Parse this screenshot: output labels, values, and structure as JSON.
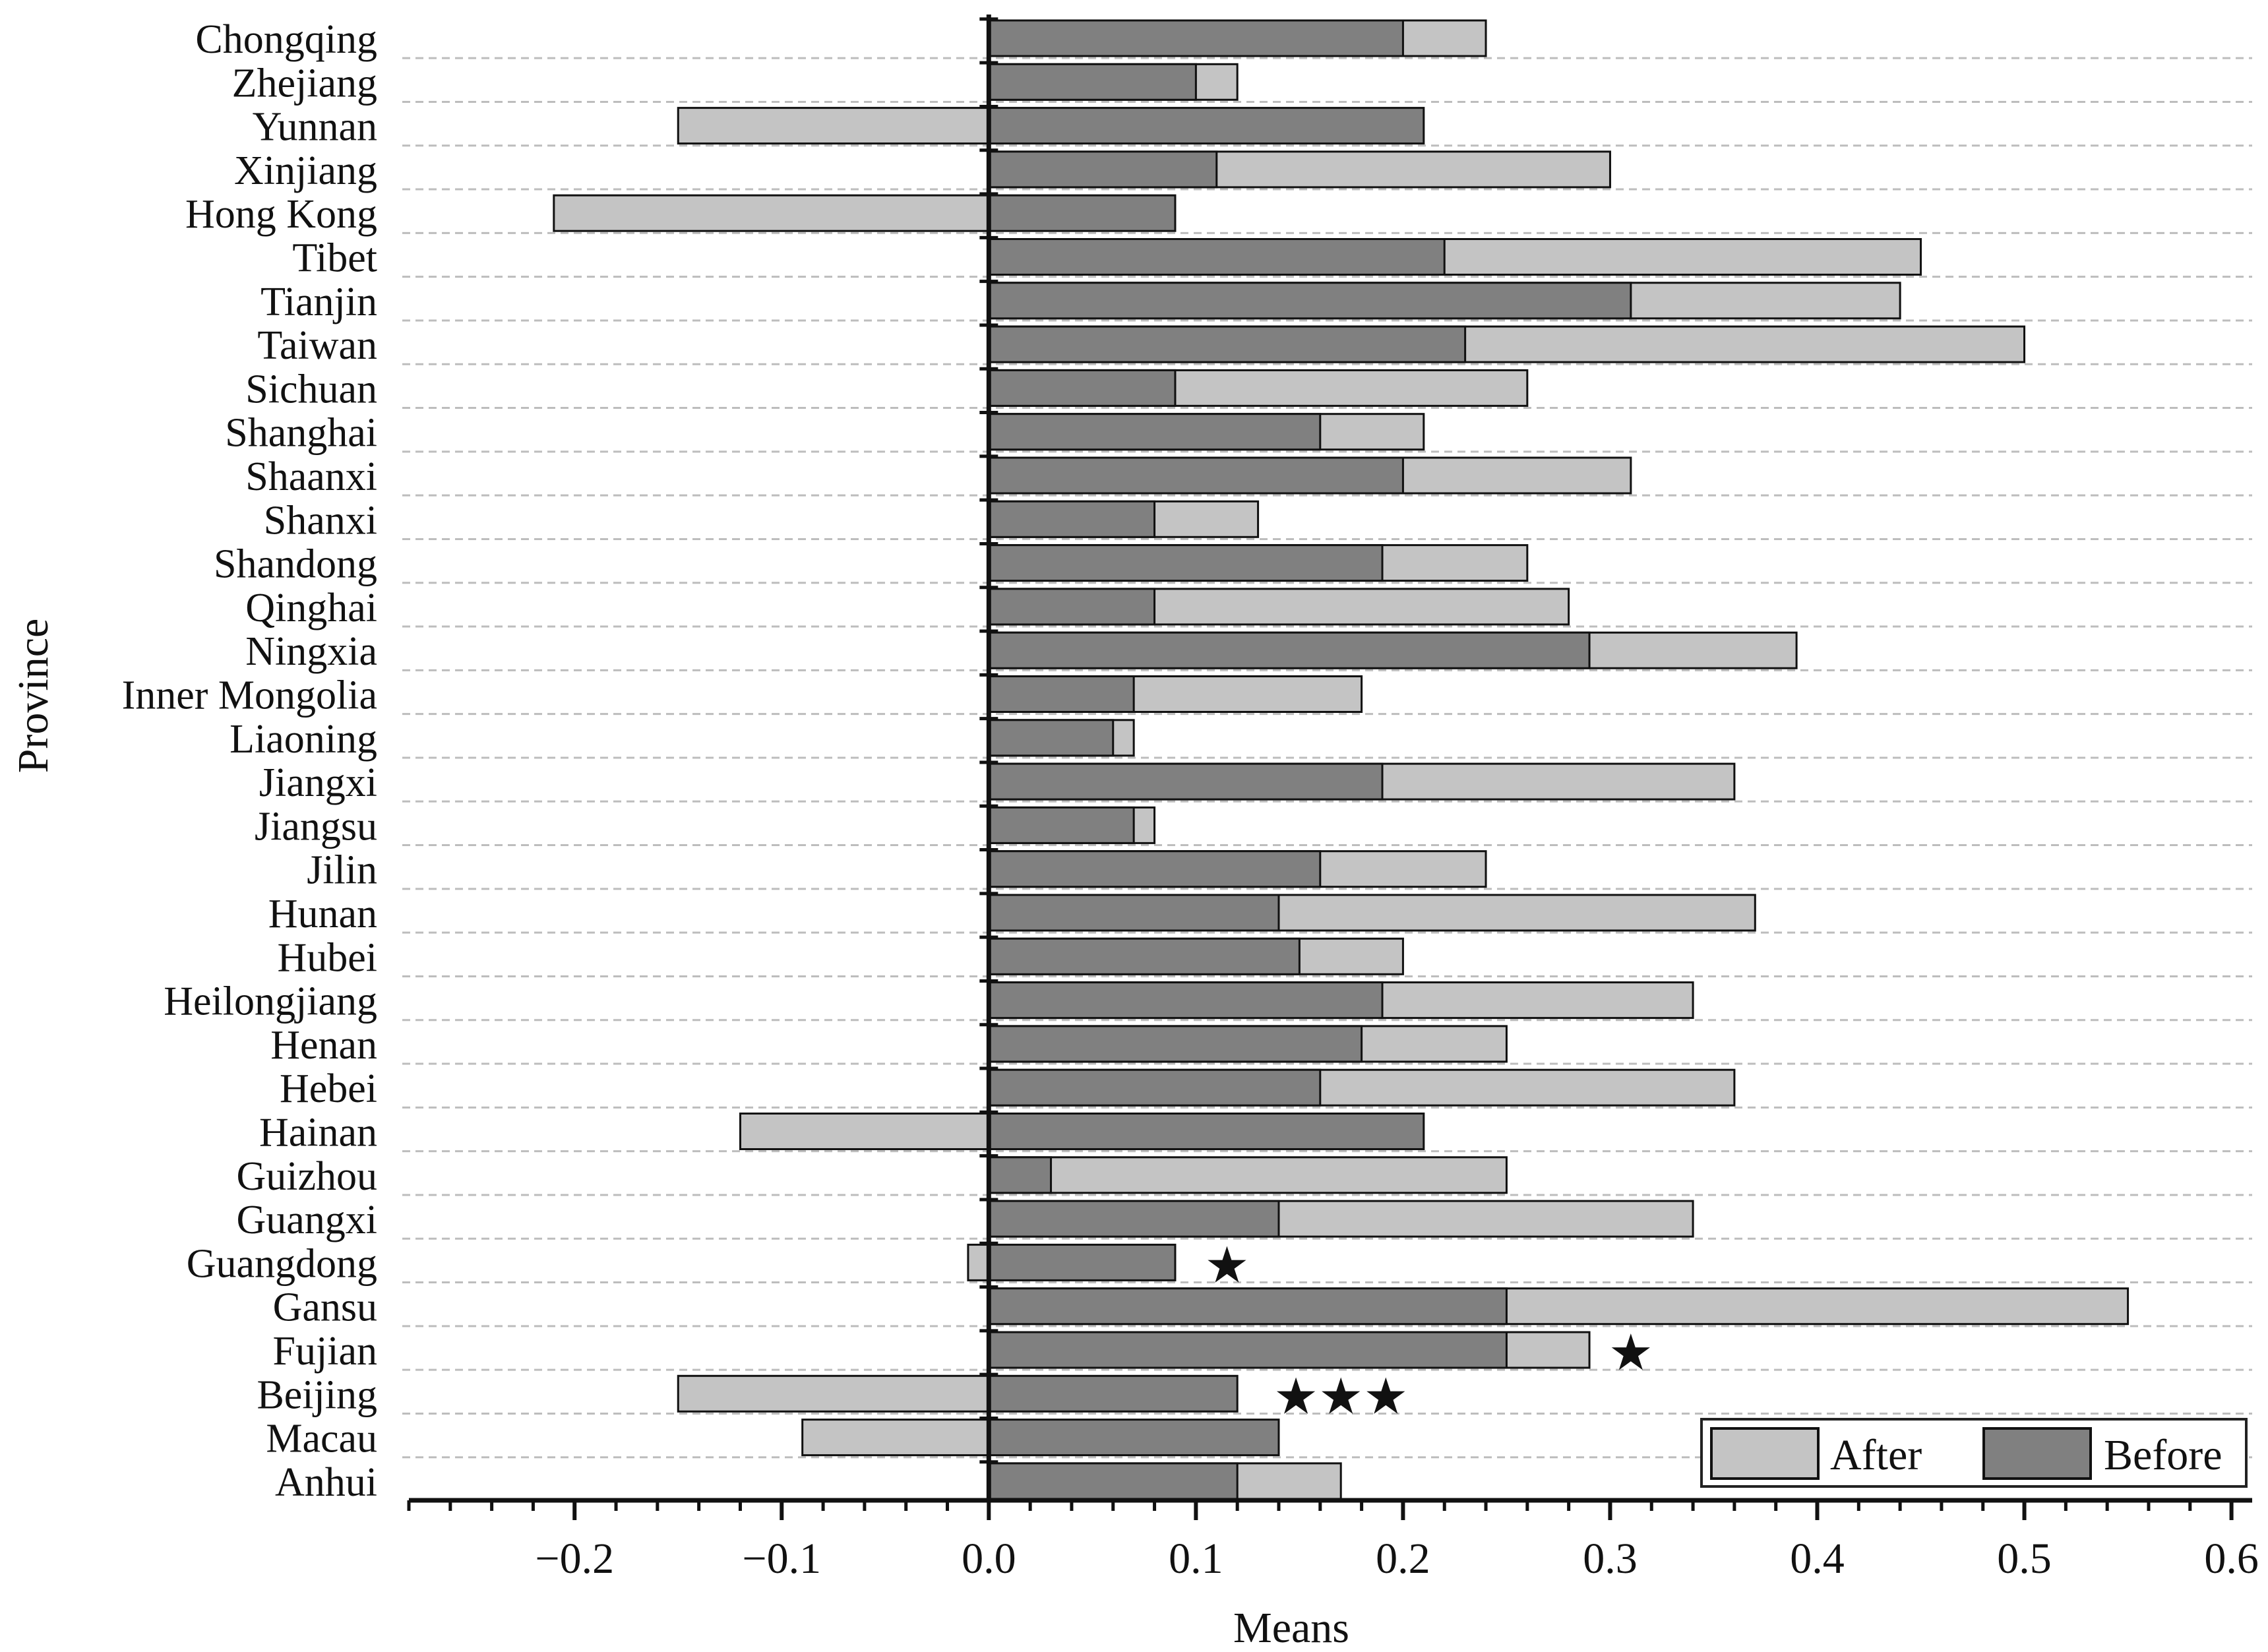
{
  "chart_data": {
    "type": "bar",
    "orientation": "horizontal",
    "stacking": "overlay",
    "title": "",
    "xlabel": "Means",
    "ylabel": "Province",
    "xlim": [
      -0.28,
      0.61
    ],
    "xticks": [
      -0.2,
      -0.1,
      0.0,
      0.1,
      0.2,
      0.3,
      0.4,
      0.5,
      0.6
    ],
    "xtick_labels": [
      "−0.2",
      "−0.1",
      "0.0",
      "0.1",
      "0.2",
      "0.3",
      "0.4",
      "0.5",
      "0.6"
    ],
    "grid": true,
    "legend_position": "bottom-right",
    "categories": [
      "Chongqing",
      "Zhejiang",
      "Yunnan",
      "Xinjiang",
      "Hong Kong",
      "Tibet",
      "Tianjin",
      "Taiwan",
      "Sichuan",
      "Shanghai",
      "Shaanxi",
      "Shanxi",
      "Shandong",
      "Qinghai",
      "Ningxia",
      "Inner Mongolia",
      "Liaoning",
      "Jiangxi",
      "Jiangsu",
      "Jilin",
      "Hunan",
      "Hubei",
      "Heilongjiang",
      "Henan",
      "Hebei",
      "Hainan",
      "Guizhou",
      "Guangxi",
      "Guangdong",
      "Gansu",
      "Fujian",
      "Beijing",
      "Macau",
      "Anhui"
    ],
    "series": [
      {
        "name": "After",
        "color": "#c4c4c4",
        "values": [
          0.24,
          0.12,
          -0.15,
          0.3,
          -0.21,
          0.45,
          0.44,
          0.5,
          0.26,
          0.21,
          0.31,
          0.13,
          0.26,
          0.28,
          0.39,
          0.18,
          0.07,
          0.36,
          0.08,
          0.24,
          0.37,
          0.2,
          0.34,
          0.25,
          0.36,
          -0.12,
          0.25,
          0.34,
          -0.01,
          0.55,
          0.29,
          -0.15,
          -0.09,
          0.17
        ]
      },
      {
        "name": "Before",
        "color": "#808080",
        "values": [
          0.2,
          0.1,
          0.21,
          0.11,
          0.09,
          0.22,
          0.31,
          0.23,
          0.09,
          0.16,
          0.2,
          0.08,
          0.19,
          0.08,
          0.29,
          0.07,
          0.06,
          0.19,
          0.07,
          0.16,
          0.14,
          0.15,
          0.19,
          0.18,
          0.16,
          0.21,
          0.03,
          0.14,
          0.09,
          0.25,
          0.25,
          0.12,
          0.14,
          0.12
        ]
      }
    ],
    "annotations": [
      {
        "category": "Guangdong",
        "text": "★",
        "x": 0.115
      },
      {
        "category": "Fujian",
        "text": "★",
        "x": 0.31
      },
      {
        "category": "Beijing",
        "text": "★★★",
        "x": 0.17
      }
    ]
  }
}
